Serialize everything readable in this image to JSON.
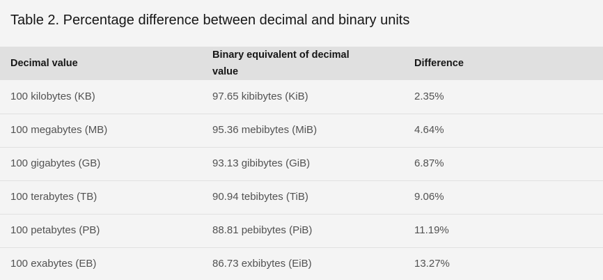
{
  "caption": "Table 2. Percentage difference between decimal and binary units",
  "table": {
    "headers": [
      "Decimal value",
      "Binary equivalent of decimal value",
      "Difference"
    ],
    "rows": [
      [
        "100 kilobytes (KB)",
        "97.65 kibibytes (KiB)",
        "2.35%"
      ],
      [
        "100 megabytes (MB)",
        "95.36 mebibytes (MiB)",
        "4.64%"
      ],
      [
        "100 gigabytes (GB)",
        "93.13 gibibytes (GiB)",
        "6.87%"
      ],
      [
        "100 terabytes (TB)",
        "90.94 tebibytes (TiB)",
        "9.06%"
      ],
      [
        "100 petabytes (PB)",
        "88.81 pebibytes (PiB)",
        "11.19%"
      ],
      [
        "100 exabytes (EB)",
        "86.73 exbibytes (EiB)",
        "13.27%"
      ]
    ]
  },
  "colors": {
    "page_background": "#f4f4f4",
    "header_background": "#e0e0e0",
    "header_text": "#161616",
    "cell_text": "#525252",
    "row_divider": "#e0e0e0"
  }
}
